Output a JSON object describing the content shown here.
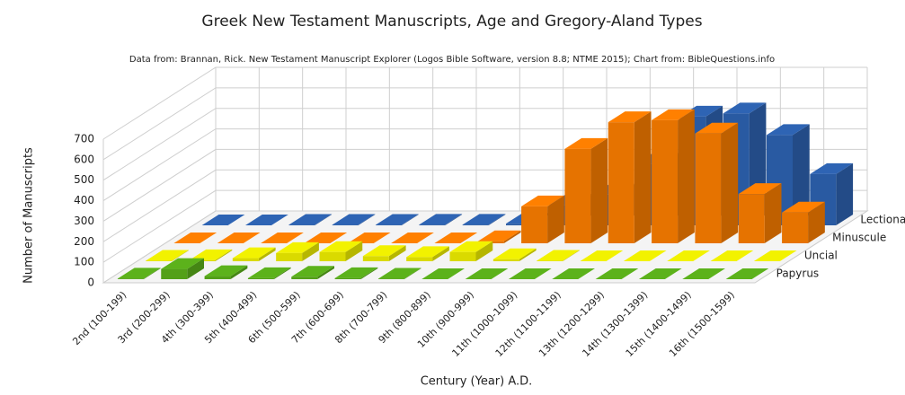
{
  "chart_data": {
    "type": "bar3d",
    "title": "Greek New Testament Manuscripts, Age and Gregory-Aland Types",
    "subtitle": "Data from: Brannan, Rick. New Testament Manuscript Explorer (Logos Bible Software, version 8.8; NTME 2015); Chart from: BibleQuestions.info",
    "y_label": "Number of Manuscripts",
    "x_label": "Century (Year) A.D.",
    "categories": [
      "2nd (100-199)",
      "3rd (200-299)",
      "4th (300-399)",
      "5th (400-499)",
      "6th (500-599)",
      "7th (600-699)",
      "8th (700-799)",
      "9th (800-899)",
      "10th (900-999)",
      "11th (1000-1099)",
      "12th (1100-1199)",
      "13th (1200-1299)",
      "14th (1300-1399)",
      "15th (1400-1499)",
      "16th (1500-1599)"
    ],
    "series": [
      {
        "name": "Papyrus",
        "color": "#5cb21b",
        "values": [
          3,
          50,
          15,
          5,
          12,
          5,
          2,
          0,
          0,
          0,
          0,
          0,
          0,
          0,
          0
        ]
      },
      {
        "name": "Uncial",
        "color": "#f2f200",
        "values": [
          2,
          5,
          15,
          40,
          45,
          25,
          20,
          45,
          10,
          2,
          0,
          0,
          0,
          0,
          0
        ]
      },
      {
        "name": "Minuscule",
        "color": "#ff8000",
        "values": [
          0,
          0,
          0,
          0,
          0,
          0,
          0,
          10,
          180,
          460,
          590,
          600,
          535,
          240,
          150
        ]
      },
      {
        "name": "Lectionary",
        "color": "#2e64b4",
        "values": [
          0,
          0,
          2,
          2,
          2,
          3,
          3,
          8,
          100,
          150,
          300,
          530,
          545,
          440,
          250
        ]
      }
    ],
    "ylim": [
      0,
      700
    ],
    "yticks": [
      0,
      100,
      200,
      300,
      400,
      500,
      600,
      700
    ],
    "grid": true
  }
}
